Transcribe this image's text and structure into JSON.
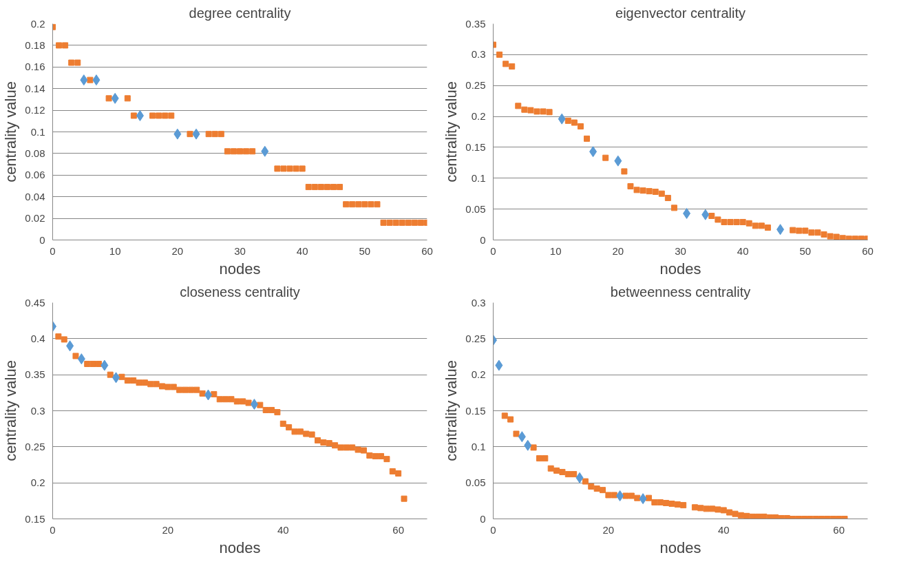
{
  "chart_data": [
    {
      "type": "scatter",
      "title": "degree centrality",
      "xlabel": "nodes",
      "ylabel": "centrality value",
      "xlim": [
        0,
        60
      ],
      "xticks": [
        0,
        10,
        20,
        30,
        40,
        50,
        60
      ],
      "ylim": [
        0,
        0.2
      ],
      "yticks": [
        0,
        0.02,
        0.04,
        0.06,
        0.08,
        0.1,
        0.12,
        0.14,
        0.16,
        0.18,
        0.2
      ],
      "grid": "y",
      "series": [
        {
          "color": "#ed7d31",
          "marker": "square",
          "x": [
            0,
            1,
            2,
            3,
            4,
            6,
            9,
            12,
            13,
            16,
            17,
            18,
            19,
            22,
            25,
            26,
            27,
            28,
            29,
            30,
            31,
            32,
            36,
            37,
            38,
            39,
            40,
            41,
            42,
            43,
            44,
            45,
            46,
            47,
            48,
            49,
            50,
            51,
            52,
            53,
            54,
            55,
            56,
            57,
            58,
            59,
            60
          ],
          "values": [
            0.197,
            0.18,
            0.18,
            0.164,
            0.164,
            0.148,
            0.131,
            0.131,
            0.115,
            0.115,
            0.115,
            0.115,
            0.115,
            0.098,
            0.098,
            0.098,
            0.098,
            0.082,
            0.082,
            0.082,
            0.082,
            0.082,
            0.066,
            0.066,
            0.066,
            0.066,
            0.066,
            0.049,
            0.049,
            0.049,
            0.049,
            0.049,
            0.049,
            0.033,
            0.033,
            0.033,
            0.033,
            0.033,
            0.033,
            0.016,
            0.016,
            0.016,
            0.016,
            0.016,
            0.016,
            0.016,
            0.016
          ]
        },
        {
          "color": "#5b9bd5",
          "marker": "diamond",
          "x": [
            5,
            7,
            10,
            14,
            20,
            23,
            34
          ],
          "values": [
            0.148,
            0.148,
            0.131,
            0.115,
            0.098,
            0.098,
            0.082
          ]
        }
      ]
    },
    {
      "type": "scatter",
      "title": "eigenvector centrality",
      "xlabel": "nodes",
      "ylabel": "centrality value",
      "xlim": [
        0,
        60
      ],
      "xticks": [
        0,
        10,
        20,
        30,
        40,
        50,
        60
      ],
      "ylim": [
        0,
        0.35
      ],
      "yticks": [
        0,
        0.05,
        0.1,
        0.15,
        0.2,
        0.25,
        0.3,
        0.35
      ],
      "grid": "y",
      "series": [
        {
          "color": "#ed7d31",
          "marker": "square",
          "x": [
            0,
            1,
            2,
            3,
            4,
            5,
            6,
            7,
            8,
            9,
            12,
            13,
            14,
            15,
            18,
            21,
            22,
            23,
            24,
            25,
            26,
            27,
            28,
            29,
            35,
            36,
            37,
            38,
            39,
            40,
            41,
            42,
            43,
            44,
            48,
            49,
            50,
            51,
            52,
            53,
            54,
            55,
            56,
            57,
            58,
            59,
            60
          ],
          "values": [
            0.316,
            0.3,
            0.285,
            0.281,
            0.217,
            0.211,
            0.21,
            0.208,
            0.208,
            0.207,
            0.193,
            0.19,
            0.184,
            0.164,
            0.133,
            0.111,
            0.087,
            0.081,
            0.08,
            0.079,
            0.078,
            0.075,
            0.068,
            0.052,
            0.039,
            0.033,
            0.029,
            0.029,
            0.029,
            0.029,
            0.027,
            0.023,
            0.023,
            0.02,
            0.016,
            0.015,
            0.015,
            0.012,
            0.012,
            0.009,
            0.006,
            0.005,
            0.003,
            0.002,
            0.002,
            0.002,
            0.002
          ]
        },
        {
          "color": "#5b9bd5",
          "marker": "diamond",
          "x": [
            11,
            16,
            20,
            31,
            34,
            46
          ],
          "values": [
            0.196,
            0.143,
            0.128,
            0.043,
            0.041,
            0.017
          ]
        }
      ]
    },
    {
      "type": "scatter",
      "title": "closeness centrality",
      "xlabel": "nodes",
      "ylabel": "centrality value",
      "xlim": [
        0,
        65
      ],
      "xticks": [
        0,
        20,
        40,
        60
      ],
      "ylim": [
        0.15,
        0.45
      ],
      "yticks": [
        0.15,
        0.2,
        0.25,
        0.3,
        0.35,
        0.4,
        0.45
      ],
      "grid": "y",
      "series": [
        {
          "color": "#ed7d31",
          "marker": "square",
          "x": [
            1,
            2,
            4,
            6,
            7,
            8,
            10,
            12,
            13,
            14,
            15,
            16,
            17,
            18,
            19,
            20,
            21,
            22,
            23,
            24,
            25,
            26,
            28,
            29,
            30,
            31,
            32,
            33,
            34,
            36,
            37,
            38,
            39,
            40,
            41,
            42,
            43,
            44,
            45,
            46,
            47,
            48,
            49,
            50,
            51,
            52,
            53,
            54,
            55,
            56,
            57,
            58,
            59,
            60,
            61
          ],
          "values": [
            0.403,
            0.399,
            0.376,
            0.365,
            0.365,
            0.365,
            0.35,
            0.347,
            0.342,
            0.342,
            0.339,
            0.339,
            0.337,
            0.337,
            0.334,
            0.333,
            0.333,
            0.329,
            0.329,
            0.329,
            0.329,
            0.324,
            0.323,
            0.316,
            0.316,
            0.316,
            0.313,
            0.313,
            0.311,
            0.308,
            0.301,
            0.301,
            0.298,
            0.282,
            0.277,
            0.271,
            0.271,
            0.268,
            0.267,
            0.259,
            0.256,
            0.255,
            0.252,
            0.249,
            0.249,
            0.249,
            0.246,
            0.245,
            0.238,
            0.237,
            0.237,
            0.233,
            0.216,
            0.213,
            0.178
          ]
        },
        {
          "color": "#5b9bd5",
          "marker": "diamond",
          "x": [
            0,
            3,
            5,
            9,
            11,
            27,
            35
          ],
          "values": [
            0.417,
            0.39,
            0.372,
            0.363,
            0.346,
            0.322,
            0.309
          ]
        }
      ]
    },
    {
      "type": "scatter",
      "title": "betweenness centrality",
      "xlabel": "nodes",
      "ylabel": "centrality value",
      "xlim": [
        0,
        65
      ],
      "xticks": [
        0,
        20,
        40,
        60
      ],
      "ylim": [
        0,
        0.3
      ],
      "yticks": [
        0,
        0.05,
        0.1,
        0.15,
        0.2,
        0.25,
        0.3
      ],
      "grid": "y",
      "series": [
        {
          "color": "#ed7d31",
          "marker": "square",
          "x": [
            2,
            3,
            4,
            7,
            8,
            9,
            10,
            11,
            12,
            13,
            14,
            16,
            17,
            18,
            19,
            20,
            21,
            23,
            24,
            25,
            27,
            28,
            29,
            30,
            31,
            32,
            33,
            35,
            36,
            37,
            38,
            39,
            40,
            41,
            42,
            43,
            44,
            45,
            46,
            47,
            48,
            49,
            50,
            51,
            52,
            53,
            54,
            55,
            56,
            57,
            58,
            59,
            60,
            61
          ],
          "values": [
            0.143,
            0.138,
            0.118,
            0.099,
            0.084,
            0.084,
            0.07,
            0.067,
            0.065,
            0.062,
            0.062,
            0.052,
            0.045,
            0.042,
            0.04,
            0.033,
            0.033,
            0.032,
            0.032,
            0.029,
            0.029,
            0.023,
            0.023,
            0.022,
            0.021,
            0.02,
            0.019,
            0.016,
            0.015,
            0.014,
            0.014,
            0.013,
            0.012,
            0.009,
            0.007,
            0.005,
            0.004,
            0.003,
            0.003,
            0.003,
            0.002,
            0.002,
            0.001,
            0.001,
            0,
            0,
            0,
            0,
            0,
            0,
            0,
            0,
            0,
            0
          ]
        },
        {
          "color": "#5b9bd5",
          "marker": "diamond",
          "x": [
            0,
            1,
            5,
            6,
            15,
            22,
            26
          ],
          "values": [
            0.248,
            0.213,
            0.114,
            0.102,
            0.057,
            0.032,
            0.028
          ]
        }
      ]
    }
  ]
}
